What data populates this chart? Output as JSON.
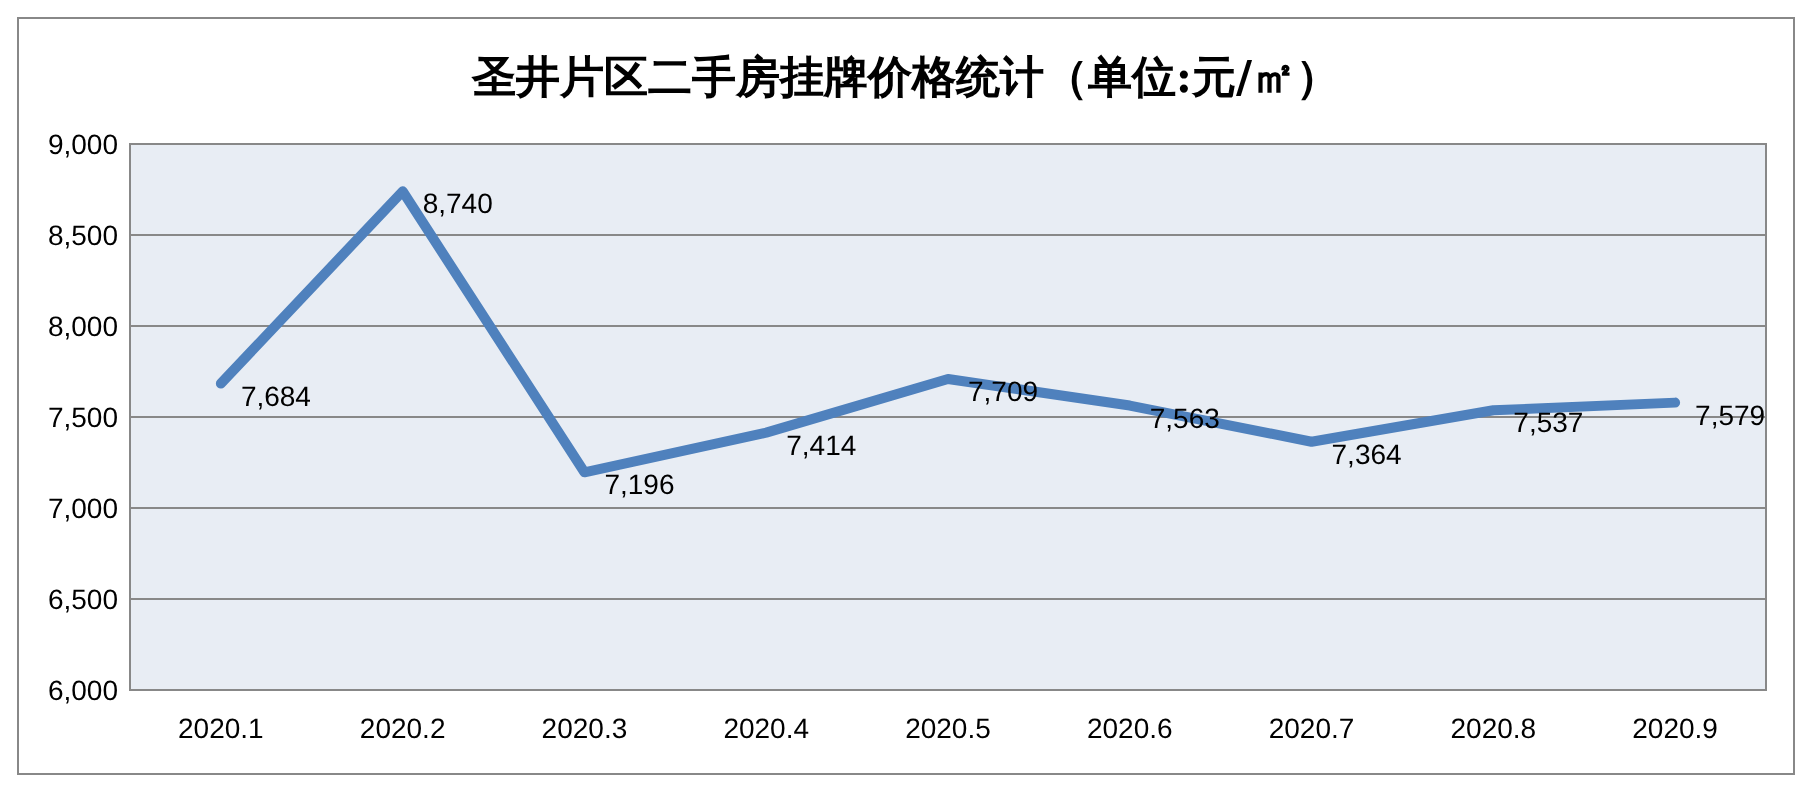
{
  "chart_data": {
    "type": "line",
    "title": "圣井片区二手房挂牌价格统计（单位:元/㎡）",
    "categories": [
      "2020.1",
      "2020.2",
      "2020.3",
      "2020.4",
      "2020.5",
      "2020.6",
      "2020.7",
      "2020.8",
      "2020.9"
    ],
    "series": [
      {
        "color": "#4f81bd",
        "values": [
          7684,
          8740,
          7196,
          7414,
          7709,
          7563,
          7364,
          7537,
          7579
        ],
        "value_labels": [
          "7,684",
          "8,740",
          "7,196",
          "7,414",
          "7,709",
          "7,563",
          "7,364",
          "7,537",
          "7,579"
        ]
      }
    ],
    "ylim": [
      6000,
      9000
    ],
    "yticks": [
      {
        "value": 6000,
        "label": "6,000"
      },
      {
        "value": 6500,
        "label": "6,500"
      },
      {
        "value": 7000,
        "label": "7,000"
      },
      {
        "value": 7500,
        "label": "7,500"
      },
      {
        "value": 8000,
        "label": "8,000"
      },
      {
        "value": 8500,
        "label": "8,500"
      },
      {
        "value": 9000,
        "label": "9,000"
      }
    ],
    "grid": "y",
    "marker": "none",
    "line_style": "solid"
  }
}
